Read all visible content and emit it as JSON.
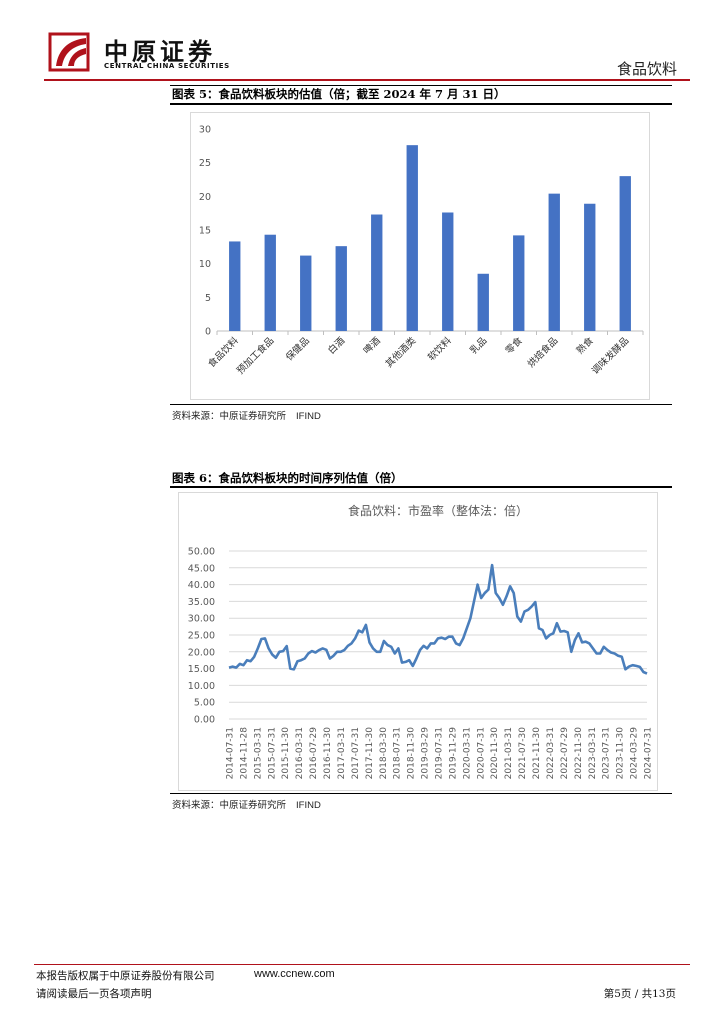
{
  "header": {
    "logo_cn": "中原证券",
    "logo_en": "CENTRAL CHINA SECURITIES",
    "sector": "食品饮料",
    "brand_color": "#b0121b"
  },
  "figure5": {
    "title": "图表 5：食品饮料板块的估值（倍；截至 2024 年 7 月 31 日）",
    "source_cn": "资料来源：中原证券研究所",
    "source_en": "IFIND"
  },
  "figure6": {
    "title": "图表 6：食品饮料板块的时间序列估值（倍）",
    "source_cn": "资料来源：中原证券研究所",
    "source_en": "IFIND"
  },
  "chart_data": [
    {
      "type": "bar",
      "title": "",
      "xlabel": "",
      "ylabel": "",
      "categories": [
        "食品饮料",
        "预加工食品",
        "保健品",
        "白酒",
        "啤酒",
        "其他酒类",
        "软饮料",
        "乳品",
        "零食",
        "烘焙食品",
        "熟食",
        "调味发酵品"
      ],
      "values": [
        13.3,
        14.3,
        11.2,
        12.6,
        17.3,
        27.6,
        17.6,
        8.5,
        14.2,
        20.4,
        18.9,
        23.0
      ],
      "ylim": [
        0,
        30
      ],
      "yticks": [
        "0",
        "5",
        "10",
        "15",
        "20",
        "25",
        "30"
      ],
      "bar_color": "#4472c4",
      "grid": false,
      "legend": "none"
    },
    {
      "type": "line",
      "title": "食品饮料：市盈率（整体法：倍）",
      "xlabel": "",
      "ylabel": "",
      "xticks": [
        "2014-07-31",
        "2014-11-28",
        "2015-03-31",
        "2015-07-31",
        "2015-11-30",
        "2016-03-31",
        "2016-07-29",
        "2016-11-30",
        "2017-03-31",
        "2017-07-31",
        "2017-11-30",
        "2018-03-30",
        "2018-07-31",
        "2018-11-30",
        "2019-03-29",
        "2019-07-31",
        "2019-11-29",
        "2020-03-31",
        "2020-07-31",
        "2020-11-30",
        "2021-03-31",
        "2021-07-30",
        "2021-11-30",
        "2022-03-31",
        "2022-07-29",
        "2022-11-30",
        "2023-03-31",
        "2023-07-31",
        "2023-11-30",
        "2024-03-29",
        "2024-07-31"
      ],
      "yticks": [
        "0.00",
        "5.00",
        "10.00",
        "15.00",
        "20.00",
        "25.00",
        "30.00",
        "35.00",
        "40.00",
        "45.00",
        "50.00"
      ],
      "ylim": [
        0,
        50
      ],
      "line_color": "#4a7ebb",
      "grid": true,
      "legend": "none",
      "series": [
        {
          "values": [
            15.3,
            15.6,
            15.3,
            16.4,
            16.0,
            17.5,
            17.2,
            18.5,
            21.0,
            23.8,
            24.0,
            21.0,
            19.2,
            18.2,
            20.0,
            20.2,
            21.7,
            15.0,
            14.8,
            17.2,
            17.5,
            18.0,
            19.5,
            20.2,
            19.8,
            20.5,
            21.0,
            20.6,
            18.0,
            18.8,
            20.0,
            20.0,
            20.5,
            21.8,
            22.5,
            24.0,
            26.3,
            25.8,
            28.0,
            22.8,
            21.0,
            20.0,
            20.0,
            23.2,
            22.0,
            21.5,
            19.5,
            21.0,
            16.8,
            17.0,
            17.5,
            15.8,
            18.0,
            20.5,
            21.8,
            21.0,
            22.5,
            22.5,
            24.0,
            24.2,
            23.8,
            24.5,
            24.5,
            22.5,
            22.0,
            24.0,
            27.0,
            30.0,
            35.0,
            40.0,
            36.0,
            37.5,
            38.5,
            45.8,
            37.5,
            36.0,
            34.0,
            36.5,
            39.5,
            37.5,
            30.5,
            29.0,
            32.0,
            32.5,
            33.5,
            34.8,
            27.0,
            26.5,
            24.0,
            25.0,
            25.5,
            28.5,
            26.0,
            26.2,
            25.8,
            20.0,
            23.5,
            25.5,
            22.8,
            23.0,
            22.5,
            21.0,
            19.5,
            19.5,
            21.5,
            20.5,
            19.8,
            19.5,
            18.8,
            18.5,
            14.8,
            15.6,
            16.0,
            15.8,
            15.5,
            14.0,
            13.5
          ]
        }
      ]
    }
  ],
  "footer": {
    "copyright": "本报告版权属于中原证券股份有限公司",
    "website": "www.ccnew.com",
    "disclaimer": "请阅读最后一页各项声明",
    "page_info": "第5页 / 共13页"
  }
}
